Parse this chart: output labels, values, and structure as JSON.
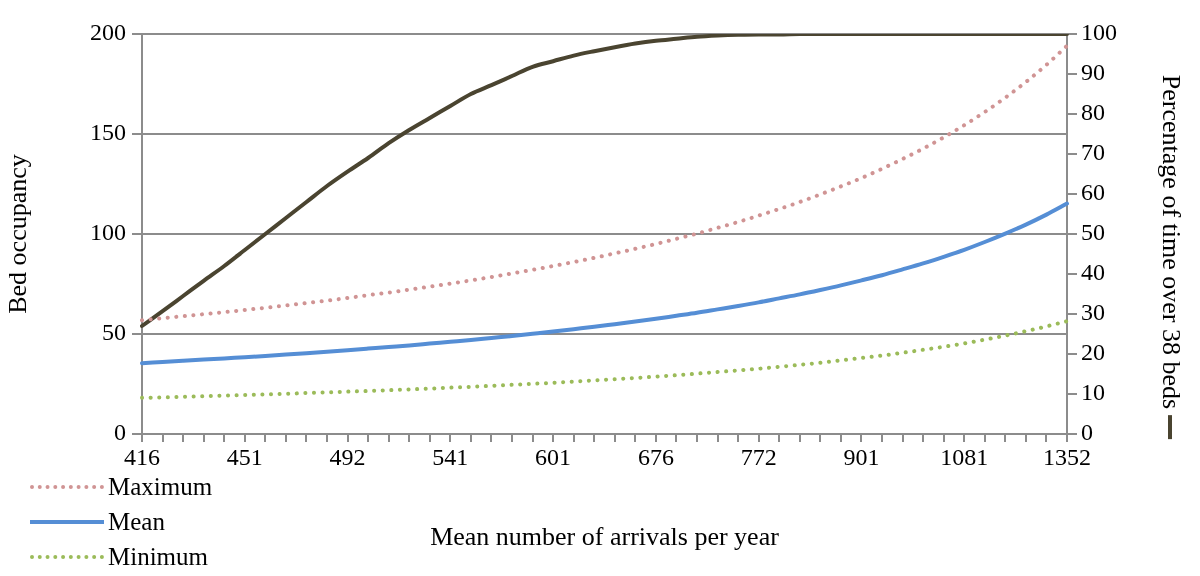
{
  "chart_data": {
    "type": "line",
    "xlabel": "Mean number of arrivals per year",
    "ylabel": "Bed occupancy",
    "y2label": "Percentage of time over 38 beds",
    "categories": [
      "416",
      null,
      null,
      null,
      null,
      "451",
      null,
      null,
      null,
      null,
      "492",
      null,
      null,
      null,
      null,
      "541",
      null,
      null,
      null,
      null,
      "601",
      null,
      null,
      null,
      null,
      "676",
      null,
      null,
      null,
      null,
      "772",
      null,
      null,
      null,
      null,
      "901",
      null,
      null,
      null,
      null,
      "1081",
      null,
      null,
      null,
      null,
      "1352"
    ],
    "series": [
      {
        "name": "Maximum",
        "color": "#d09494",
        "line_style": "dotted",
        "values": [
          56.9,
          57.9,
          58.9,
          59.9,
          60.9,
          62.0,
          63.1,
          64.3,
          65.5,
          66.7,
          68.0,
          69.4,
          70.7,
          72.2,
          73.7,
          75.2,
          76.8,
          78.5,
          80.3,
          82.1,
          84.0,
          86.0,
          88.1,
          90.3,
          92.6,
          95.0,
          97.6,
          100.2,
          103.1,
          106.0,
          109.2,
          112.5,
          116.0,
          119.8,
          123.8,
          128.0,
          132.6,
          137.5,
          142.7,
          148.3,
          154.4,
          161.0,
          168.2,
          176.0,
          184.6,
          194.1
        ]
      },
      {
        "name": "Mean",
        "color": "#558ed5",
        "line_style": "solid",
        "values": [
          35.4,
          36.0,
          36.6,
          37.2,
          37.8,
          38.4,
          39.0,
          39.7,
          40.4,
          41.1,
          41.9,
          42.7,
          43.5,
          44.3,
          45.2,
          46.1,
          47.0,
          48.0,
          49.0,
          50.1,
          51.2,
          52.4,
          53.6,
          54.9,
          56.2,
          57.6,
          59.1,
          60.6,
          62.3,
          64.0,
          65.8,
          67.8,
          69.8,
          72.0,
          74.3,
          76.8,
          79.4,
          82.3,
          85.3,
          88.6,
          92.1,
          96.0,
          100.2,
          104.7,
          109.7,
          115.2
        ]
      },
      {
        "name": "Minimum",
        "color": "#9bbb59",
        "line_style": "dotted",
        "values": [
          18.1,
          18.3,
          18.6,
          18.9,
          19.2,
          19.5,
          19.8,
          20.1,
          20.5,
          20.8,
          21.2,
          21.5,
          21.9,
          22.3,
          22.7,
          23.2,
          23.6,
          24.1,
          24.6,
          25.1,
          25.6,
          26.2,
          26.8,
          27.4,
          28.0,
          28.7,
          29.4,
          30.2,
          31.0,
          31.8,
          32.7,
          33.6,
          34.6,
          35.6,
          36.8,
          38.0,
          39.2,
          40.6,
          42.1,
          43.6,
          45.3,
          47.2,
          49.2,
          51.4,
          53.8,
          56.4
        ]
      },
      {
        "color": "#4a4430",
        "line_style": "solid",
        "axis": "y2",
        "values": [
          27,
          30.7,
          34.5,
          38.3,
          42,
          46,
          50,
          54,
          58,
          62,
          65.6,
          69,
          72.7,
          76,
          79,
          82,
          85,
          87.2,
          89.5,
          91.8,
          93.2,
          94.6,
          95.7,
          96.7,
          97.6,
          98.3,
          98.8,
          99.3,
          99.6,
          99.8,
          99.9,
          99.9,
          100,
          100,
          100,
          100,
          100,
          100,
          100,
          100,
          100,
          100,
          100,
          100,
          100,
          100
        ]
      }
    ],
    "ylim": [
      0,
      200
    ],
    "yticks": [
      0,
      50,
      100,
      150,
      200
    ],
    "y2lim": [
      0,
      100
    ],
    "y2ticks": [
      0,
      10,
      20,
      30,
      40,
      50,
      60,
      70,
      80,
      90,
      100
    ],
    "grid": "y",
    "legend": "bottom left",
    "marker": "none"
  }
}
